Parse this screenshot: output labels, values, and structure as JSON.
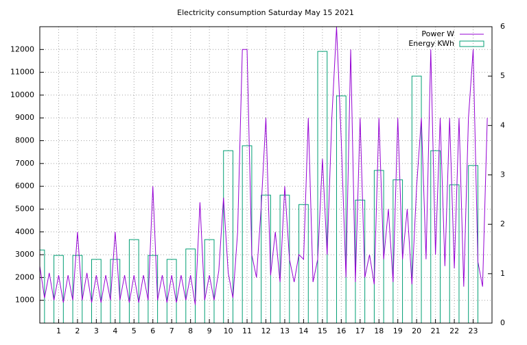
{
  "chart_data": {
    "type": "line-boxes",
    "title": "Electricity consumption Saturday May 15 2021",
    "xlim": [
      0,
      24
    ],
    "xticks": [
      1,
      2,
      3,
      4,
      5,
      6,
      7,
      8,
      9,
      10,
      11,
      12,
      13,
      14,
      15,
      16,
      17,
      18,
      19,
      20,
      21,
      22,
      23
    ],
    "ylim": [
      0,
      13000
    ],
    "yticks": [
      1000,
      2000,
      3000,
      4000,
      5000,
      6000,
      7000,
      8000,
      9000,
      10000,
      11000,
      12000
    ],
    "y2lim": [
      0,
      6
    ],
    "y2ticks": [
      0,
      1,
      2,
      3,
      4,
      5,
      6
    ],
    "grid": true,
    "legend": "top-right",
    "series": [
      {
        "name": "Power W",
        "color": "#9400d3",
        "kind": "line",
        "x": [
          0,
          0.25,
          0.5,
          0.75,
          1,
          1.25,
          1.5,
          1.75,
          2,
          2.25,
          2.5,
          2.75,
          3,
          3.25,
          3.5,
          3.75,
          4,
          4.25,
          4.5,
          4.75,
          5,
          5.25,
          5.5,
          5.75,
          6,
          6.25,
          6.5,
          6.75,
          7,
          7.25,
          7.5,
          7.75,
          8,
          8.25,
          8.5,
          8.75,
          9,
          9.25,
          9.5,
          9.75,
          10,
          10.25,
          10.5,
          10.75,
          11,
          11.25,
          11.5,
          11.75,
          12,
          12.25,
          12.5,
          12.75,
          13,
          13.25,
          13.5,
          13.75,
          14,
          14.25,
          14.5,
          14.75,
          15,
          15.25,
          15.5,
          15.75,
          16,
          16.25,
          16.5,
          16.75,
          17,
          17.25,
          17.5,
          17.75,
          18,
          18.25,
          18.5,
          18.75,
          19,
          19.25,
          19.5,
          19.75,
          20,
          20.25,
          20.5,
          20.75,
          21,
          21.25,
          21.5,
          21.75,
          22,
          22.25,
          22.5,
          22.75,
          23,
          23.25,
          23.5,
          23.75
        ],
        "values": [
          2500,
          1100,
          2200,
          1000,
          2100,
          900,
          2100,
          1000,
          4000,
          1000,
          2200,
          900,
          2100,
          900,
          2100,
          1000,
          4000,
          1000,
          2100,
          900,
          2100,
          900,
          2100,
          1000,
          6000,
          1000,
          2100,
          900,
          2100,
          900,
          2100,
          1000,
          2100,
          800,
          5300,
          1000,
          2100,
          1000,
          2300,
          5500,
          2200,
          1100,
          4000,
          12000,
          12000,
          3000,
          2000,
          5100,
          9000,
          2100,
          4000,
          1800,
          6000,
          2800,
          1800,
          3000,
          2800,
          9000,
          1800,
          2800,
          7200,
          3000,
          9000,
          13000,
          8000,
          2000,
          12000,
          1800,
          9000,
          2000,
          3000,
          1700,
          9000,
          2800,
          5000,
          1800,
          9000,
          2800,
          5000,
          1700,
          6000,
          9000,
          2800,
          12000,
          3000,
          9000,
          2500,
          9000,
          2400,
          9000,
          1600,
          9000,
          12000,
          2700,
          1600,
          9000
        ]
      },
      {
        "name": "Energy KWh",
        "color": "#009e73",
        "kind": "boxes",
        "axis": "y2",
        "x": [
          0,
          1,
          2,
          3,
          4,
          5,
          6,
          7,
          8,
          9,
          10,
          11,
          12,
          13,
          14,
          15,
          16,
          17,
          18,
          19,
          20,
          21,
          22,
          23
        ],
        "values": [
          1.48,
          1.37,
          1.37,
          1.29,
          1.29,
          1.69,
          1.37,
          1.29,
          1.5,
          1.69,
          3.49,
          3.59,
          2.59,
          2.59,
          2.4,
          5.5,
          4.6,
          2.49,
          3.09,
          2.9,
          5.0,
          3.49,
          2.8,
          3.19
        ]
      }
    ]
  }
}
